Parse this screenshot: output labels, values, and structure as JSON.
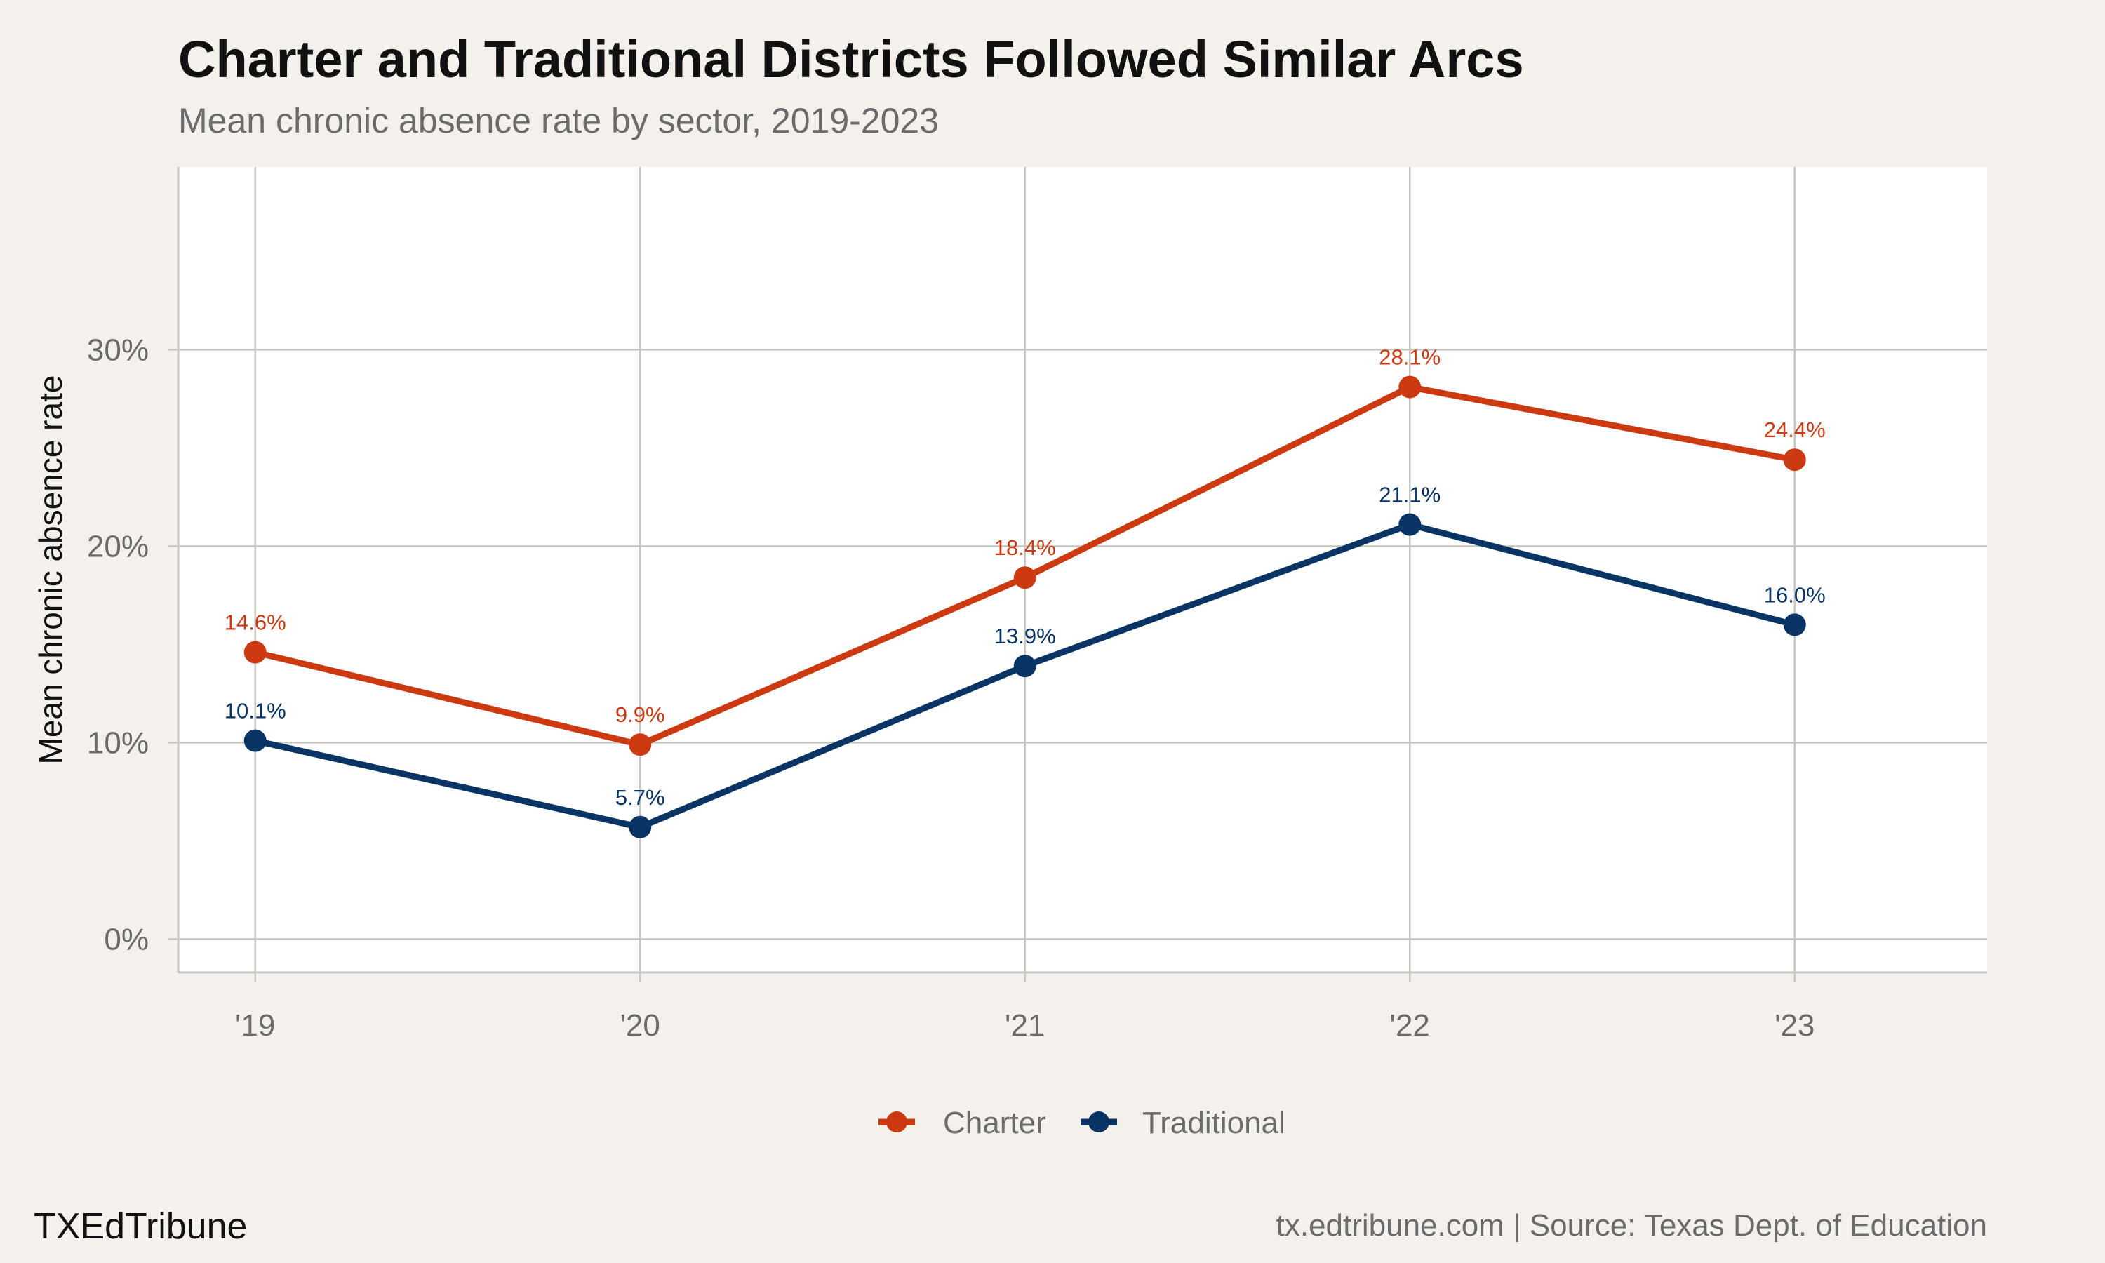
{
  "header": {
    "title": "Charter and Traditional Districts Followed Similar Arcs",
    "subtitle": "Mean chronic absence rate by sector, 2019-2023"
  },
  "footer": {
    "brand": "TXEdTribune",
    "source": "tx.edtribune.com | Source: Texas Dept. of Education"
  },
  "colors": {
    "background": "#f4f1ec",
    "panel": "#ffffff",
    "grid": "#c8c6c1",
    "charter": "#cc3a12",
    "traditional": "#0a3463"
  },
  "chart_data": {
    "type": "line",
    "title": "Charter and Traditional Districts Followed Similar Arcs",
    "subtitle": "Mean chronic absence rate by sector, 2019-2023",
    "xlabel": "",
    "ylabel": "Mean chronic absence rate",
    "categories": [
      "'19",
      "'20",
      "'21",
      "'22",
      "'23"
    ],
    "xlim": [
      -0.2,
      4.5
    ],
    "ylim": [
      -1.7,
      39.3
    ],
    "yticks": [
      0,
      10,
      20,
      30
    ],
    "ytick_labels": [
      "0%",
      "10%",
      "20%",
      "30%"
    ],
    "grid": true,
    "legend_position": "bottom",
    "series": [
      {
        "name": "Charter",
        "color": "#cc3a12",
        "values": [
          14.6,
          9.9,
          18.4,
          28.1,
          24.4
        ],
        "labels": [
          "14.6%",
          "9.9%",
          "18.4%",
          "28.1%",
          "24.4%"
        ]
      },
      {
        "name": "Traditional",
        "color": "#0a3463",
        "values": [
          10.1,
          5.7,
          13.9,
          21.1,
          16.0
        ],
        "labels": [
          "10.1%",
          "5.7%",
          "13.9%",
          "21.1%",
          "16.0%"
        ]
      }
    ]
  }
}
